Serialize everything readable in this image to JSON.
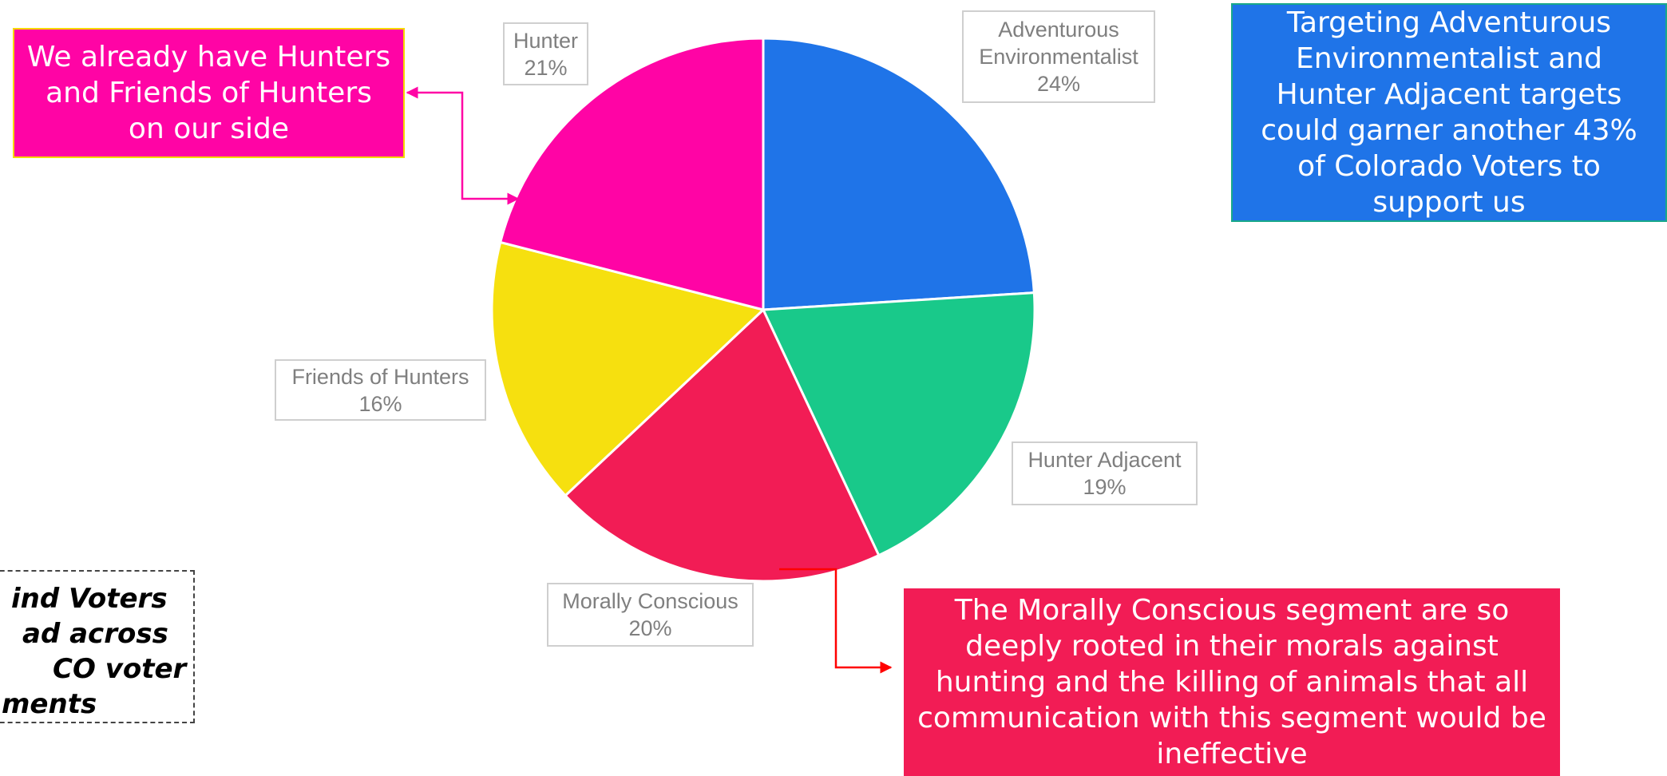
{
  "chart_data": {
    "type": "pie",
    "categories": [
      "Adventurous Environmentalist",
      "Hunter Adjacent",
      "Morally Conscious",
      "Friends of Hunters",
      "Hunter"
    ],
    "values": [
      24,
      19,
      20,
      16,
      21
    ],
    "value_labels": [
      "24%",
      "19%",
      "20%",
      "16%",
      "21%"
    ],
    "colors": [
      "#1f74e8",
      "#19c98a",
      "#f21c55",
      "#f6e00f",
      "#ff04a5"
    ],
    "annotations": [
      "We already have Hunters and Friends of Hunters on our side",
      "Targeting Adventurous Environmentalist and Hunter Adjacent targets could garner another 43% of Colorado Voters to support us",
      "The Morally Conscious segment are so deeply rooted in their morals against hunting and the killing of animals that all communication with this segment would be ineffective"
    ],
    "cropped_note": [
      "ind Voters",
      "ad across",
      "CO voter",
      "ments"
    ]
  }
}
